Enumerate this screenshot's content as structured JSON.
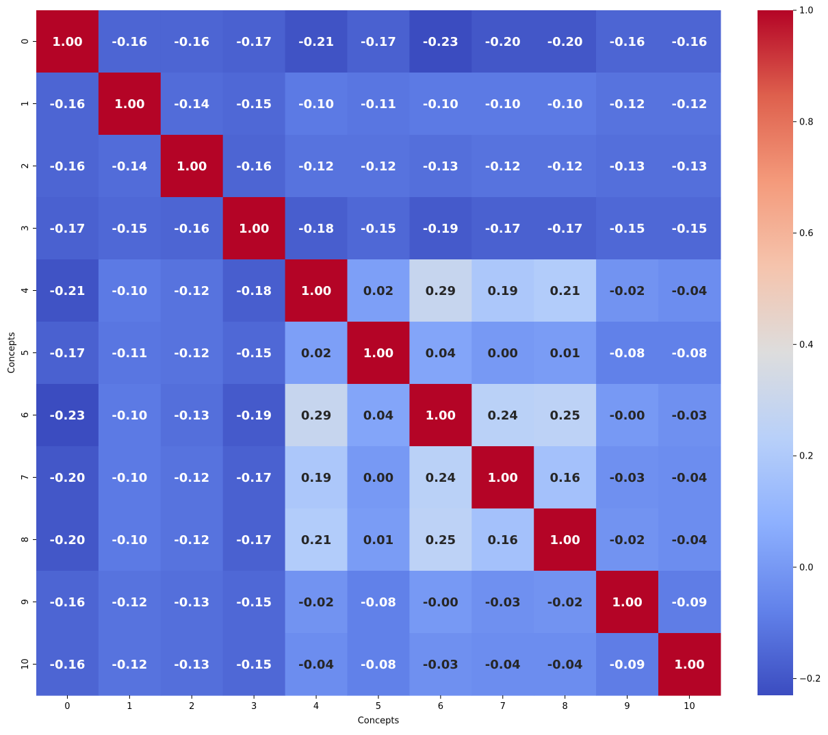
{
  "chart_data": {
    "type": "heatmap",
    "colormap": "coolwarm",
    "xlabel": "Concepts",
    "ylabel": "Concepts",
    "x_categories": [
      "0",
      "1",
      "2",
      "3",
      "4",
      "5",
      "6",
      "7",
      "8",
      "9",
      "10"
    ],
    "y_categories": [
      "0",
      "1",
      "2",
      "3",
      "4",
      "5",
      "6",
      "7",
      "8",
      "9",
      "10"
    ],
    "values": [
      [
        1.0,
        -0.16,
        -0.16,
        -0.17,
        -0.21,
        -0.17,
        -0.23,
        -0.2,
        -0.2,
        -0.16,
        -0.16
      ],
      [
        -0.16,
        1.0,
        -0.14,
        -0.15,
        -0.1,
        -0.11,
        -0.1,
        -0.1,
        -0.1,
        -0.12,
        -0.12
      ],
      [
        -0.16,
        -0.14,
        1.0,
        -0.16,
        -0.12,
        -0.12,
        -0.13,
        -0.12,
        -0.12,
        -0.13,
        -0.13
      ],
      [
        -0.17,
        -0.15,
        -0.16,
        1.0,
        -0.18,
        -0.15,
        -0.19,
        -0.17,
        -0.17,
        -0.15,
        -0.15
      ],
      [
        -0.21,
        -0.1,
        -0.12,
        -0.18,
        1.0,
        0.02,
        0.29,
        0.19,
        0.21,
        -0.02,
        -0.04
      ],
      [
        -0.17,
        -0.11,
        -0.12,
        -0.15,
        0.02,
        1.0,
        0.04,
        0.0,
        0.01,
        -0.08,
        -0.08
      ],
      [
        -0.23,
        -0.1,
        -0.13,
        -0.19,
        0.29,
        0.04,
        1.0,
        0.24,
        0.25,
        -0.0,
        -0.03
      ],
      [
        -0.2,
        -0.1,
        -0.12,
        -0.17,
        0.19,
        0.0,
        0.24,
        1.0,
        0.16,
        -0.03,
        -0.04
      ],
      [
        -0.2,
        -0.1,
        -0.12,
        -0.17,
        0.21,
        0.01,
        0.25,
        0.16,
        1.0,
        -0.02,
        -0.04
      ],
      [
        -0.16,
        -0.12,
        -0.13,
        -0.15,
        -0.02,
        -0.08,
        -0.0,
        -0.03,
        -0.02,
        1.0,
        -0.09
      ],
      [
        -0.16,
        -0.12,
        -0.13,
        -0.15,
        -0.04,
        -0.08,
        -0.03,
        -0.04,
        -0.04,
        -0.09,
        1.0
      ]
    ],
    "value_labels": [
      [
        "1.00",
        "-0.16",
        "-0.16",
        "-0.17",
        "-0.21",
        "-0.17",
        "-0.23",
        "-0.20",
        "-0.20",
        "-0.16",
        "-0.16"
      ],
      [
        "-0.16",
        "1.00",
        "-0.14",
        "-0.15",
        "-0.10",
        "-0.11",
        "-0.10",
        "-0.10",
        "-0.10",
        "-0.12",
        "-0.12"
      ],
      [
        "-0.16",
        "-0.14",
        "1.00",
        "-0.16",
        "-0.12",
        "-0.12",
        "-0.13",
        "-0.12",
        "-0.12",
        "-0.13",
        "-0.13"
      ],
      [
        "-0.17",
        "-0.15",
        "-0.16",
        "1.00",
        "-0.18",
        "-0.15",
        "-0.19",
        "-0.17",
        "-0.17",
        "-0.15",
        "-0.15"
      ],
      [
        "-0.21",
        "-0.10",
        "-0.12",
        "-0.18",
        "1.00",
        "0.02",
        "0.29",
        "0.19",
        "0.21",
        "-0.02",
        "-0.04"
      ],
      [
        "-0.17",
        "-0.11",
        "-0.12",
        "-0.15",
        "0.02",
        "1.00",
        "0.04",
        "0.00",
        "0.01",
        "-0.08",
        "-0.08"
      ],
      [
        "-0.23",
        "-0.10",
        "-0.13",
        "-0.19",
        "0.29",
        "0.04",
        "1.00",
        "0.24",
        "0.25",
        "-0.00",
        "-0.03"
      ],
      [
        "-0.20",
        "-0.10",
        "-0.12",
        "-0.17",
        "0.19",
        "0.00",
        "0.24",
        "1.00",
        "0.16",
        "-0.03",
        "-0.04"
      ],
      [
        "-0.20",
        "-0.10",
        "-0.12",
        "-0.17",
        "0.21",
        "0.01",
        "0.25",
        "0.16",
        "1.00",
        "-0.02",
        "-0.04"
      ],
      [
        "-0.16",
        "-0.12",
        "-0.13",
        "-0.15",
        "-0.02",
        "-0.08",
        "-0.00",
        "-0.03",
        "-0.02",
        "1.00",
        "-0.09"
      ],
      [
        "-0.16",
        "-0.12",
        "-0.13",
        "-0.15",
        "-0.04",
        "-0.08",
        "-0.03",
        "-0.04",
        "-0.04",
        "-0.09",
        "1.00"
      ]
    ],
    "vmin": -0.23,
    "vmax": 1.0,
    "colorbar": {
      "ticks": [
        -0.2,
        0.0,
        0.2,
        0.4,
        0.6,
        0.8,
        1.0
      ],
      "tick_labels": [
        "−0.2",
        "0.0",
        "0.2",
        "0.4",
        "0.6",
        "0.8",
        "1.0"
      ],
      "placement": "right"
    },
    "grid": false,
    "legend": "none"
  }
}
